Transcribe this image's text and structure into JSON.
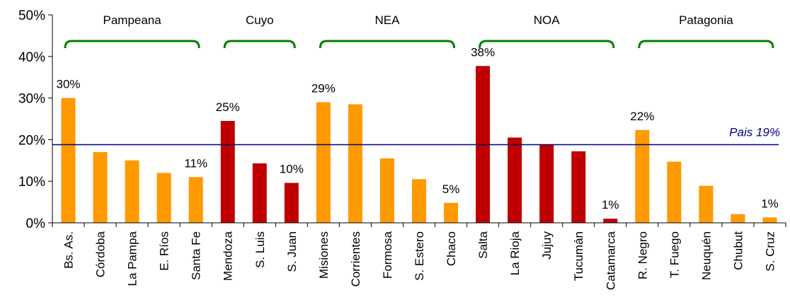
{
  "chart_data": {
    "type": "bar",
    "categories": [
      "Bs. As.",
      "Córdoba",
      "La Pampa",
      "E. Ríos",
      "Santa Fe",
      "Mendoza",
      "S. Luis",
      "S. Juan",
      "Misiones",
      "Corrientes",
      "Formosa",
      "S. Estero",
      "Chaco",
      "Salta",
      "La Rioja",
      "Jujuy",
      "Tucumán",
      "Catamarca",
      "R. Negro",
      "T. Fuego",
      "Neuquén",
      "Chubut",
      "S. Cruz"
    ],
    "values": [
      30,
      17,
      15,
      12,
      11,
      24.5,
      14.3,
      9.6,
      29,
      28.5,
      15.5,
      10.5,
      4.8,
      37.7,
      20.5,
      18.8,
      17.2,
      1,
      22.3,
      14.7,
      8.9,
      2.1,
      1.3
    ],
    "bar_colors": [
      "#ff9900",
      "#ff9900",
      "#ff9900",
      "#ff9900",
      "#ff9900",
      "#c00000",
      "#c00000",
      "#c00000",
      "#ff9900",
      "#ff9900",
      "#ff9900",
      "#ff9900",
      "#ff9900",
      "#c00000",
      "#c00000",
      "#c00000",
      "#c00000",
      "#c00000",
      "#ff9900",
      "#ff9900",
      "#ff9900",
      "#ff9900",
      "#ff9900"
    ],
    "data_labels": [
      "30%",
      "",
      "",
      "",
      "11%",
      "25%",
      "",
      "10%",
      "29%",
      "",
      "",
      "",
      "5%",
      "38%",
      "",
      "",
      "",
      "1%",
      "22%",
      "",
      "",
      "",
      "1%"
    ],
    "ylim": [
      0,
      50
    ],
    "y_ticks": [
      0,
      10,
      20,
      30,
      40,
      50
    ],
    "y_tick_labels": [
      "0%",
      "10%",
      "20%",
      "30%",
      "40%",
      "50%"
    ],
    "reference_line": {
      "value": 18.8,
      "label": "Pais 19%",
      "color": "#000080"
    },
    "groups": [
      {
        "label": "Pampeana",
        "start": 0,
        "end": 4
      },
      {
        "label": "Cuyo",
        "start": 5,
        "end": 7
      },
      {
        "label": "NEA",
        "start": 8,
        "end": 12
      },
      {
        "label": "NOA",
        "start": 13,
        "end": 17
      },
      {
        "label": "Patagonia",
        "start": 18,
        "end": 22
      }
    ],
    "brace_color": "#008000",
    "grid": false,
    "legend": "none",
    "title": "",
    "xlabel": "",
    "ylabel": ""
  }
}
